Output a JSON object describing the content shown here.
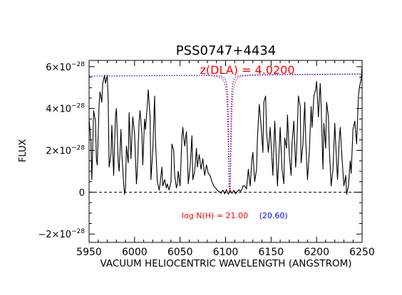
{
  "chart_data": {
    "type": "line",
    "title": "PSS0747+4434",
    "xlabel": "VACUUM HELIOCENTRIC WAVELENGTH (ANGSTROM)",
    "ylabel": "FLUX",
    "xlim": [
      5950,
      6250
    ],
    "ylim": [
      -2.4e-28,
      6.3e-28
    ],
    "x_ticks": [
      5950,
      6000,
      6050,
      6100,
      6150,
      6200,
      6250
    ],
    "x_tick_labels": [
      "5950",
      "6000",
      "6050",
      "6100",
      "6150",
      "6200",
      "6250"
    ],
    "y_ticks": [
      {
        "value": -2e-28,
        "mantissa": "−2×10",
        "exp": "−28"
      },
      {
        "value": 0,
        "label": "0"
      },
      {
        "value": 2e-28,
        "mantissa": "2×10",
        "exp": "−28"
      },
      {
        "value": 4e-28,
        "mantissa": "4×10",
        "exp": "−28"
      },
      {
        "value": 6e-28,
        "mantissa": "6×10",
        "exp": "−28"
      }
    ],
    "annotations": {
      "redshift": "z(DLA) = 4.0200",
      "column_density": "log N(H) = 21.00",
      "column_density_alt": "(20.60)"
    },
    "dla": {
      "z": 4.02,
      "center_wavelength": 6104.5,
      "continuum_level_at_5950": 5.55e-28,
      "continuum_level_at_6250": 5.65e-28,
      "models": [
        {
          "logN": 21.0,
          "color": "#ff0000"
        },
        {
          "logN": 20.6,
          "color": "#0000ff"
        }
      ]
    },
    "zero_line": {
      "value": 0,
      "style": "dashed",
      "color": "#000000"
    },
    "series": [
      {
        "style": "solid",
        "color": "#000000",
        "points": [
          [
            5950,
            3.5e-28
          ],
          [
            5952,
            2.4e-28
          ],
          [
            5953,
            6e-29
          ],
          [
            5955,
            3.9e-28
          ],
          [
            5957,
            3.4e-28
          ],
          [
            5958,
            1.6e-28
          ],
          [
            5959,
            1.3e-28
          ],
          [
            5961,
            4.2e-28
          ],
          [
            5962,
            4.8e-28
          ],
          [
            5964,
            4.3e-28
          ],
          [
            5965,
            5.2e-28
          ],
          [
            5967,
            5.6e-28
          ],
          [
            5968,
            5.2e-28
          ],
          [
            5970,
            5.6e-28
          ],
          [
            5971,
            4.4e-28
          ],
          [
            5972,
            1.2e-28
          ],
          [
            5974,
            1.8e-28
          ],
          [
            5975,
            3.2e-28
          ],
          [
            5977,
            8e-29
          ],
          [
            5979,
            3.6e-28
          ],
          [
            5980,
            4e-28
          ],
          [
            5982,
            1.4e-28
          ],
          [
            5983,
            1e-28
          ],
          [
            5985,
            3e-28
          ],
          [
            5986,
            1.8e-28
          ],
          [
            5988,
            4e-29
          ],
          [
            5989,
            -1e-29
          ],
          [
            5990,
            2e-29
          ],
          [
            5991,
            2.2e-28
          ],
          [
            5993,
            1.4e-28
          ],
          [
            5994,
            3.8e-28
          ],
          [
            5996,
            1.6e-28
          ],
          [
            5998,
            3.6e-28
          ],
          [
            6000,
            2.8e-28
          ],
          [
            6002,
            4e-29
          ],
          [
            6003,
            1e-28
          ],
          [
            6005,
            3.4e-28
          ],
          [
            6006,
            3.9e-28
          ],
          [
            6008,
            2.8e-28
          ],
          [
            6009,
            1.3e-28
          ],
          [
            6011,
            3.5e-28
          ],
          [
            6012,
            3e-28
          ],
          [
            6014,
            4.2e-28
          ],
          [
            6015,
            4.9e-28
          ],
          [
            6017,
            3.6e-28
          ],
          [
            6018,
            6e-29
          ],
          [
            6020,
            2e-28
          ],
          [
            6022,
            4.6e-28
          ],
          [
            6023,
            2.4e-28
          ],
          [
            6025,
            5e-29
          ],
          [
            6027,
            1e-29
          ],
          [
            6028,
            4e-29
          ],
          [
            6030,
            1.2e-28
          ],
          [
            6031,
            3e-29
          ],
          [
            6033,
            6e-29
          ],
          [
            6035,
            2e-29
          ],
          [
            6036,
            4e-29
          ],
          [
            6038,
            1e-29
          ],
          [
            6040,
            5e-29
          ],
          [
            6041,
            2.3e-28
          ],
          [
            6043,
            2e-28
          ],
          [
            6044,
            8e-29
          ],
          [
            6046,
            2e-29
          ],
          [
            6047,
            4e-29
          ],
          [
            6048,
            1e-28
          ],
          [
            6050,
            3e-29
          ],
          [
            6052,
            2.6e-28
          ],
          [
            6053,
            3.1e-28
          ],
          [
            6055,
            2.2e-28
          ],
          [
            6057,
            2.9e-28
          ],
          [
            6058,
            1.8e-28
          ],
          [
            6059,
            4e-29
          ],
          [
            6061,
            1.2e-28
          ],
          [
            6063,
            2.7e-28
          ],
          [
            6064,
            6e-29
          ],
          [
            6066,
            1e-28
          ],
          [
            6068,
            2.1e-28
          ],
          [
            6069,
            1.2e-28
          ],
          [
            6071,
            1.8e-28
          ],
          [
            6073,
            1.1e-28
          ],
          [
            6075,
            1.6e-28
          ],
          [
            6077,
            8e-29
          ],
          [
            6079,
            1.3e-28
          ],
          [
            6081,
            9e-29
          ],
          [
            6083,
            8e-29
          ],
          [
            6085,
            5e-29
          ],
          [
            6087,
            3e-29
          ],
          [
            6089,
            2e-29
          ],
          [
            6091,
            8e-30
          ],
          [
            6093,
            3e-30
          ],
          [
            6095,
            -5e-30
          ],
          [
            6097,
            1e-29
          ],
          [
            6099,
            -8e-30
          ],
          [
            6101,
            1.2e-29
          ],
          [
            6103,
            -1e-29
          ],
          [
            6105,
            1e-29
          ],
          [
            6107,
            -6e-30
          ],
          [
            6109,
            9e-30
          ],
          [
            6111,
            -8e-30
          ],
          [
            6113,
            5e-30
          ],
          [
            6115,
            1.2e-29
          ],
          [
            6116,
            4e-30
          ],
          [
            6118,
            1.2e-29
          ],
          [
            6119,
            3e-29
          ],
          [
            6121,
            3e-29
          ],
          [
            6123,
            1.5e-29
          ],
          [
            6125,
            1.1e-28
          ],
          [
            6127,
            3e-29
          ],
          [
            6129,
            1.6e-28
          ],
          [
            6130,
            1.9e-28
          ],
          [
            6132,
            5e-29
          ],
          [
            6134,
            1.1e-28
          ],
          [
            6135,
            2.6e-28
          ],
          [
            6137,
            4.2e-28
          ],
          [
            6139,
            3.2e-28
          ],
          [
            6141,
            1.9e-28
          ],
          [
            6142,
            4.3e-28
          ],
          [
            6144,
            4.6e-28
          ],
          [
            6145,
            2.9e-28
          ],
          [
            6147,
            1.9e-28
          ],
          [
            6149,
            3.1e-28
          ],
          [
            6150,
            2.3e-28
          ],
          [
            6152,
            8e-29
          ],
          [
            6154,
            3.4e-28
          ],
          [
            6155,
            2.4e-28
          ],
          [
            6157,
            3e-29
          ],
          [
            6159,
            2.1e-28
          ],
          [
            6160,
            3.1e-28
          ],
          [
            6162,
            1.1e-28
          ],
          [
            6164,
            4e-29
          ],
          [
            6165,
            2.6e-28
          ],
          [
            6167,
            2.1e-28
          ],
          [
            6168,
            3.7e-28
          ],
          [
            6170,
            1.8e-28
          ],
          [
            6172,
            8e-29
          ],
          [
            6173,
            2.3e-28
          ],
          [
            6175,
            3.4e-28
          ],
          [
            6177,
            1.2e-28
          ],
          [
            6178,
            1.9e-28
          ],
          [
            6180,
            4.6e-28
          ],
          [
            6182,
            4.1e-28
          ],
          [
            6183,
            1.4e-28
          ],
          [
            6185,
            2.3e-28
          ],
          [
            6187,
            4.3e-28
          ],
          [
            6188,
            2.6e-28
          ],
          [
            6190,
            6e-29
          ],
          [
            6192,
            1.9e-28
          ],
          [
            6194,
            4.1e-28
          ],
          [
            6195,
            3.1e-28
          ],
          [
            6197,
            4.6e-28
          ],
          [
            6199,
            4.9e-28
          ],
          [
            6200,
            5.3e-28
          ],
          [
            6202,
            3.6e-28
          ],
          [
            6204,
            5.2e-28
          ],
          [
            6205,
            4.1e-28
          ],
          [
            6207,
            1.1e-28
          ],
          [
            6208,
            3.3e-28
          ],
          [
            6210,
            2.1e-28
          ],
          [
            6211,
            4.3e-28
          ],
          [
            6213,
            3.6e-28
          ],
          [
            6214,
            2.1e-28
          ],
          [
            6216,
            3e-29
          ],
          [
            6218,
            1.1e-28
          ],
          [
            6220,
            3.3e-28
          ],
          [
            6221,
            2.3e-28
          ],
          [
            6223,
            6e-29
          ],
          [
            6225,
            2.6e-28
          ],
          [
            6226,
            3.1e-28
          ],
          [
            6228,
            1.6e-28
          ],
          [
            6230,
            3e-29
          ],
          [
            6232,
            8e-29
          ],
          [
            6233,
            -1e-29
          ],
          [
            6235,
            3e-29
          ],
          [
            6237,
            1.5e-28
          ],
          [
            6238,
            9e-29
          ],
          [
            6240,
            3e-28
          ],
          [
            6242,
            3.4e-28
          ],
          [
            6244,
            2.3e-28
          ],
          [
            6246,
            4.6e-28
          ],
          [
            6247,
            5e-28
          ],
          [
            6249,
            5.4e-28
          ],
          [
            6250,
            6e-28
          ]
        ]
      }
    ]
  }
}
